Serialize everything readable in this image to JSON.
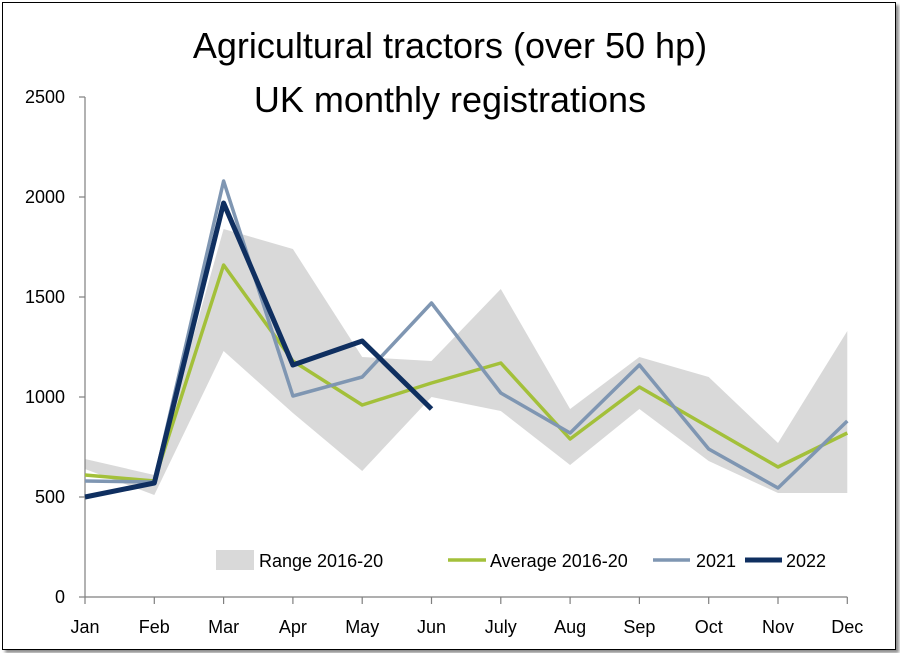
{
  "chart_data": {
    "type": "line",
    "title": [
      "Agricultural tractors (over 50 hp)",
      "UK monthly registrations"
    ],
    "categories": [
      "Jan",
      "Feb",
      "Mar",
      "Apr",
      "May",
      "Jun",
      "July",
      "Aug",
      "Sep",
      "Oct",
      "Nov",
      "Dec"
    ],
    "ylim": [
      0,
      2500
    ],
    "yticks": [
      0,
      500,
      1000,
      1500,
      2000,
      2500
    ],
    "xlabel": "",
    "ylabel": "",
    "range": {
      "name": "Range 2016-20",
      "color": "#d9d9d9",
      "low": [
        640,
        510,
        1230,
        920,
        630,
        1000,
        930,
        660,
        940,
        680,
        520,
        520
      ],
      "high": [
        690,
        610,
        1840,
        1740,
        1200,
        1180,
        1540,
        940,
        1200,
        1100,
        770,
        1330
      ]
    },
    "series": [
      {
        "name": "Average 2016-20",
        "color": "#a3c03a",
        "width": 3.5,
        "values": [
          610,
          580,
          1660,
          1180,
          960,
          1070,
          1170,
          790,
          1050,
          850,
          650,
          820
        ]
      },
      {
        "name": "2021",
        "color": "#7f96b2",
        "width": 3.5,
        "values": [
          580,
          575,
          2080,
          1005,
          1100,
          1470,
          1020,
          820,
          1160,
          740,
          545,
          880
        ]
      },
      {
        "name": "2022",
        "color": "#0f2f60",
        "width": 5,
        "values": [
          500,
          570,
          1970,
          1160,
          1280,
          940,
          null,
          null,
          null,
          null,
          null,
          null
        ]
      }
    ],
    "legend": [
      "Range 2016-20",
      "Average 2016-20",
      "2021",
      "2022"
    ],
    "legend_position": "bottom-inside"
  }
}
